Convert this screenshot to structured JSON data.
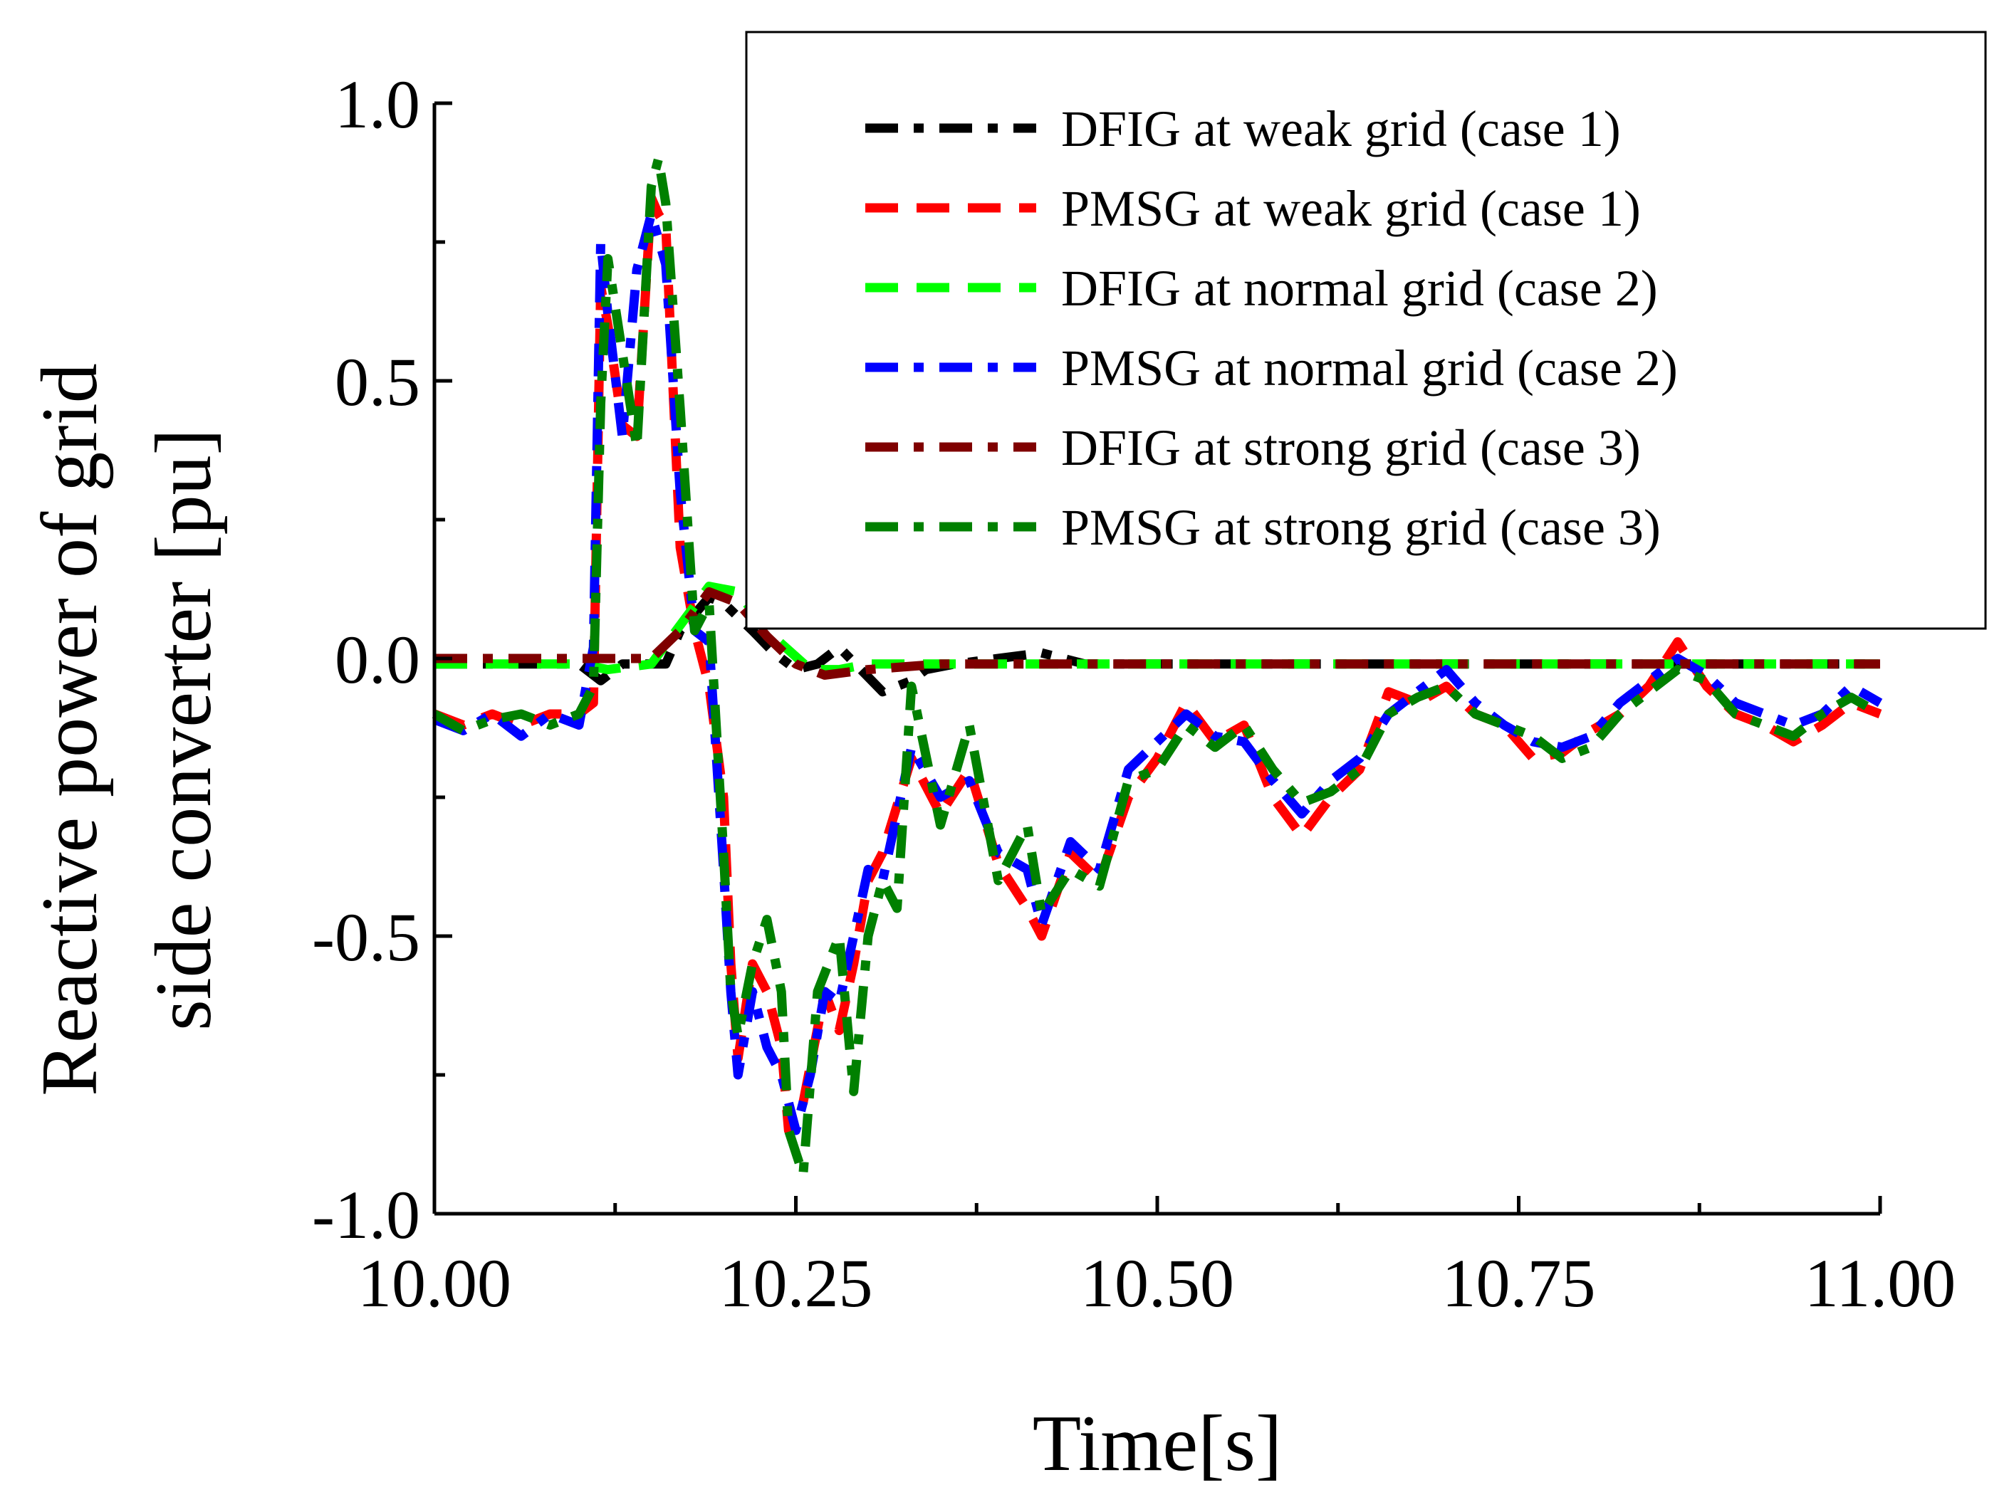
{
  "chart_data": {
    "type": "line",
    "title": "",
    "xlabel": "Time[s]",
    "ylabel_lines": [
      "Reactive power of grid",
      "side converter [pu]"
    ],
    "xlim": [
      10.0,
      11.0
    ],
    "ylim": [
      -1.0,
      1.0
    ],
    "x_ticks": [
      10.0,
      10.25,
      10.5,
      10.75,
      11.0
    ],
    "x_tick_labels": [
      "10.00",
      "10.25",
      "10.50",
      "10.75",
      "11.00"
    ],
    "y_ticks": [
      -1.0,
      -0.5,
      0.0,
      0.5,
      1.0
    ],
    "y_tick_labels": [
      "-1.0",
      "-0.5",
      "0.0",
      "0.5",
      "1.0"
    ],
    "grid": false,
    "legend_position": "top-right",
    "series": [
      {
        "name": "DFIG at weak grid (case 1)",
        "color": "#000000",
        "dash": "dashdot",
        "points": [
          [
            10.0,
            -0.01
          ],
          [
            10.05,
            -0.01
          ],
          [
            10.1,
            -0.01
          ],
          [
            10.115,
            -0.04
          ],
          [
            10.13,
            -0.01
          ],
          [
            10.16,
            -0.01
          ],
          [
            10.17,
            0.05
          ],
          [
            10.18,
            0.08
          ],
          [
            10.19,
            0.11
          ],
          [
            10.2,
            0.1
          ],
          [
            10.22,
            0.05
          ],
          [
            10.235,
            0.01
          ],
          [
            10.25,
            -0.02
          ],
          [
            10.265,
            -0.01
          ],
          [
            10.28,
            0.02
          ],
          [
            10.295,
            -0.02
          ],
          [
            10.31,
            -0.06
          ],
          [
            10.33,
            -0.04
          ],
          [
            10.34,
            -0.02
          ],
          [
            10.36,
            -0.01
          ],
          [
            10.39,
            0.0
          ],
          [
            10.42,
            0.01
          ],
          [
            10.45,
            -0.01
          ],
          [
            10.5,
            -0.01
          ],
          [
            10.6,
            -0.01
          ],
          [
            10.7,
            -0.01
          ],
          [
            10.8,
            -0.01
          ],
          [
            10.9,
            -0.01
          ],
          [
            11.0,
            -0.01
          ]
        ]
      },
      {
        "name": "PMSG at weak grid (case 1)",
        "color": "#ff0000",
        "dash": "dash",
        "points": [
          [
            10.0,
            -0.1
          ],
          [
            10.02,
            -0.12
          ],
          [
            10.04,
            -0.1
          ],
          [
            10.06,
            -0.12
          ],
          [
            10.08,
            -0.1
          ],
          [
            10.1,
            -0.1
          ],
          [
            10.11,
            -0.08
          ],
          [
            10.115,
            0.67
          ],
          [
            10.12,
            0.6
          ],
          [
            10.13,
            0.42
          ],
          [
            10.14,
            0.4
          ],
          [
            10.15,
            0.83
          ],
          [
            10.155,
            0.8
          ],
          [
            10.16,
            0.78
          ],
          [
            10.17,
            0.2
          ],
          [
            10.18,
            0.05
          ],
          [
            10.19,
            -0.05
          ],
          [
            10.2,
            -0.25
          ],
          [
            10.205,
            -0.55
          ],
          [
            10.21,
            -0.72
          ],
          [
            10.22,
            -0.55
          ],
          [
            10.23,
            -0.6
          ],
          [
            10.24,
            -0.7
          ],
          [
            10.245,
            -0.85
          ],
          [
            10.255,
            -0.8
          ],
          [
            10.27,
            -0.6
          ],
          [
            10.28,
            -0.67
          ],
          [
            10.29,
            -0.55
          ],
          [
            10.3,
            -0.4
          ],
          [
            10.31,
            -0.35
          ],
          [
            10.33,
            -0.18
          ],
          [
            10.35,
            -0.28
          ],
          [
            10.37,
            -0.2
          ],
          [
            10.39,
            -0.37
          ],
          [
            10.41,
            -0.45
          ],
          [
            10.42,
            -0.5
          ],
          [
            10.44,
            -0.35
          ],
          [
            10.46,
            -0.4
          ],
          [
            10.48,
            -0.25
          ],
          [
            10.5,
            -0.18
          ],
          [
            10.52,
            -0.08
          ],
          [
            10.54,
            -0.15
          ],
          [
            10.56,
            -0.12
          ],
          [
            10.58,
            -0.25
          ],
          [
            10.6,
            -0.32
          ],
          [
            10.62,
            -0.25
          ],
          [
            10.64,
            -0.2
          ],
          [
            10.66,
            -0.06
          ],
          [
            10.68,
            -0.08
          ],
          [
            10.7,
            -0.05
          ],
          [
            10.72,
            -0.1
          ],
          [
            10.74,
            -0.12
          ],
          [
            10.76,
            -0.18
          ],
          [
            10.78,
            -0.17
          ],
          [
            10.8,
            -0.13
          ],
          [
            10.82,
            -0.1
          ],
          [
            10.84,
            -0.05
          ],
          [
            10.86,
            0.03
          ],
          [
            10.88,
            -0.05
          ],
          [
            10.9,
            -0.1
          ],
          [
            10.92,
            -0.12
          ],
          [
            10.94,
            -0.15
          ],
          [
            10.96,
            -0.12
          ],
          [
            10.98,
            -0.08
          ],
          [
            11.0,
            -0.1
          ]
        ]
      },
      {
        "name": "DFIG at normal grid (case 2)",
        "color": "#00ff00",
        "dash": "dash",
        "points": [
          [
            10.0,
            -0.01
          ],
          [
            10.05,
            -0.01
          ],
          [
            10.1,
            -0.01
          ],
          [
            10.12,
            -0.02
          ],
          [
            10.15,
            -0.01
          ],
          [
            10.17,
            0.06
          ],
          [
            10.19,
            0.13
          ],
          [
            10.21,
            0.12
          ],
          [
            10.23,
            0.05
          ],
          [
            10.26,
            -0.02
          ],
          [
            10.28,
            -0.02
          ],
          [
            10.3,
            -0.01
          ],
          [
            10.35,
            -0.01
          ],
          [
            10.4,
            -0.01
          ],
          [
            10.5,
            -0.01
          ],
          [
            10.6,
            -0.01
          ],
          [
            10.7,
            -0.01
          ],
          [
            10.8,
            -0.01
          ],
          [
            10.9,
            -0.01
          ],
          [
            11.0,
            -0.01
          ]
        ]
      },
      {
        "name": "PMSG at normal grid (case 2)",
        "color": "#0000ff",
        "dash": "dashdot",
        "points": [
          [
            10.0,
            -0.11
          ],
          [
            10.02,
            -0.13
          ],
          [
            10.04,
            -0.1
          ],
          [
            10.06,
            -0.14
          ],
          [
            10.08,
            -0.1
          ],
          [
            10.1,
            -0.12
          ],
          [
            10.11,
            0.02
          ],
          [
            10.115,
            0.75
          ],
          [
            10.12,
            0.62
          ],
          [
            10.13,
            0.4
          ],
          [
            10.14,
            0.7
          ],
          [
            10.15,
            0.8
          ],
          [
            10.16,
            0.71
          ],
          [
            10.17,
            0.3
          ],
          [
            10.18,
            0.05
          ],
          [
            10.19,
            0.03
          ],
          [
            10.2,
            -0.38
          ],
          [
            10.205,
            -0.6
          ],
          [
            10.21,
            -0.75
          ],
          [
            10.22,
            -0.6
          ],
          [
            10.23,
            -0.7
          ],
          [
            10.24,
            -0.75
          ],
          [
            10.25,
            -0.85
          ],
          [
            10.26,
            -0.75
          ],
          [
            10.27,
            -0.6
          ],
          [
            10.28,
            -0.62
          ],
          [
            10.29,
            -0.5
          ],
          [
            10.3,
            -0.38
          ],
          [
            10.31,
            -0.4
          ],
          [
            10.33,
            -0.16
          ],
          [
            10.35,
            -0.25
          ],
          [
            10.37,
            -0.22
          ],
          [
            10.39,
            -0.35
          ],
          [
            10.41,
            -0.38
          ],
          [
            10.42,
            -0.48
          ],
          [
            10.44,
            -0.33
          ],
          [
            10.46,
            -0.38
          ],
          [
            10.48,
            -0.2
          ],
          [
            10.5,
            -0.15
          ],
          [
            10.52,
            -0.1
          ],
          [
            10.54,
            -0.14
          ],
          [
            10.56,
            -0.15
          ],
          [
            10.58,
            -0.22
          ],
          [
            10.6,
            -0.28
          ],
          [
            10.62,
            -0.22
          ],
          [
            10.64,
            -0.18
          ],
          [
            10.66,
            -0.1
          ],
          [
            10.68,
            -0.06
          ],
          [
            10.7,
            -0.02
          ],
          [
            10.72,
            -0.08
          ],
          [
            10.74,
            -0.12
          ],
          [
            10.76,
            -0.15
          ],
          [
            10.78,
            -0.16
          ],
          [
            10.8,
            -0.14
          ],
          [
            10.82,
            -0.08
          ],
          [
            10.84,
            -0.04
          ],
          [
            10.86,
            0.0
          ],
          [
            10.88,
            -0.03
          ],
          [
            10.9,
            -0.08
          ],
          [
            10.92,
            -0.1
          ],
          [
            10.94,
            -0.12
          ],
          [
            10.96,
            -0.1
          ],
          [
            10.98,
            -0.05
          ],
          [
            11.0,
            -0.08
          ]
        ]
      },
      {
        "name": "DFIG at strong grid (case 3)",
        "color": "#7f0000",
        "dash": "dashdot",
        "points": [
          [
            10.0,
            0.0
          ],
          [
            10.05,
            0.0
          ],
          [
            10.1,
            0.0
          ],
          [
            10.15,
            0.0
          ],
          [
            10.17,
            0.05
          ],
          [
            10.19,
            0.12
          ],
          [
            10.21,
            0.1
          ],
          [
            10.23,
            0.04
          ],
          [
            10.25,
            -0.01
          ],
          [
            10.27,
            -0.03
          ],
          [
            10.3,
            -0.02
          ],
          [
            10.35,
            -0.01
          ],
          [
            10.4,
            -0.01
          ],
          [
            10.5,
            -0.01
          ],
          [
            10.6,
            -0.01
          ],
          [
            10.7,
            -0.01
          ],
          [
            10.8,
            -0.01
          ],
          [
            10.9,
            -0.01
          ],
          [
            11.0,
            -0.01
          ]
        ]
      },
      {
        "name": "PMSG at strong grid (case 3)",
        "color": "#008000",
        "dash": "dashdot",
        "points": [
          [
            10.0,
            -0.1
          ],
          [
            10.02,
            -0.13
          ],
          [
            10.04,
            -0.11
          ],
          [
            10.06,
            -0.1
          ],
          [
            10.08,
            -0.12
          ],
          [
            10.1,
            -0.1
          ],
          [
            10.11,
            -0.05
          ],
          [
            10.115,
            0.46
          ],
          [
            10.12,
            0.72
          ],
          [
            10.13,
            0.55
          ],
          [
            10.14,
            0.38
          ],
          [
            10.15,
            0.85
          ],
          [
            10.155,
            0.9
          ],
          [
            10.16,
            0.82
          ],
          [
            10.17,
            0.45
          ],
          [
            10.18,
            0.05
          ],
          [
            10.19,
            0.1
          ],
          [
            10.2,
            -0.35
          ],
          [
            10.205,
            -0.6
          ],
          [
            10.21,
            -0.68
          ],
          [
            10.22,
            -0.55
          ],
          [
            10.23,
            -0.47
          ],
          [
            10.24,
            -0.6
          ],
          [
            10.245,
            -0.85
          ],
          [
            10.255,
            -0.93
          ],
          [
            10.265,
            -0.6
          ],
          [
            10.28,
            -0.5
          ],
          [
            10.29,
            -0.78
          ],
          [
            10.3,
            -0.5
          ],
          [
            10.31,
            -0.4
          ],
          [
            10.32,
            -0.45
          ],
          [
            10.33,
            -0.05
          ],
          [
            10.35,
            -0.3
          ],
          [
            10.37,
            -0.12
          ],
          [
            10.39,
            -0.4
          ],
          [
            10.41,
            -0.3
          ],
          [
            10.42,
            -0.46
          ],
          [
            10.44,
            -0.38
          ],
          [
            10.46,
            -0.41
          ],
          [
            10.48,
            -0.22
          ],
          [
            10.5,
            -0.2
          ],
          [
            10.52,
            -0.12
          ],
          [
            10.54,
            -0.16
          ],
          [
            10.56,
            -0.12
          ],
          [
            10.58,
            -0.2
          ],
          [
            10.6,
            -0.26
          ],
          [
            10.62,
            -0.24
          ],
          [
            10.64,
            -0.2
          ],
          [
            10.66,
            -0.1
          ],
          [
            10.68,
            -0.07
          ],
          [
            10.7,
            -0.05
          ],
          [
            10.72,
            -0.1
          ],
          [
            10.74,
            -0.12
          ],
          [
            10.76,
            -0.14
          ],
          [
            10.78,
            -0.18
          ],
          [
            10.8,
            -0.16
          ],
          [
            10.82,
            -0.1
          ],
          [
            10.84,
            -0.06
          ],
          [
            10.86,
            -0.02
          ],
          [
            10.88,
            -0.04
          ],
          [
            10.9,
            -0.1
          ],
          [
            10.92,
            -0.12
          ],
          [
            10.94,
            -0.14
          ],
          [
            10.96,
            -0.1
          ],
          [
            10.98,
            -0.07
          ],
          [
            11.0,
            -0.1
          ]
        ]
      }
    ]
  }
}
